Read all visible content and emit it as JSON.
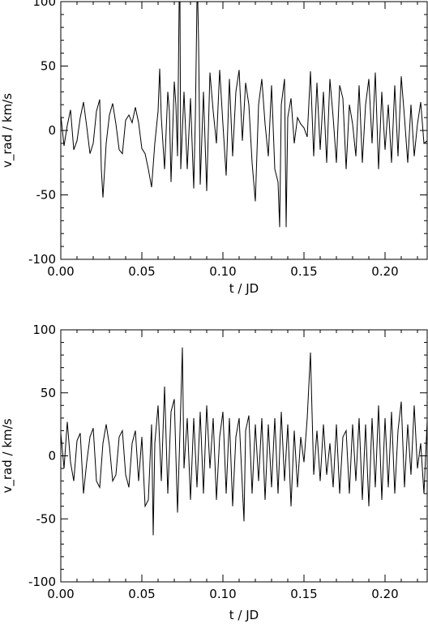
{
  "chart_data": [
    {
      "type": "line",
      "xlabel": "t / JD",
      "ylabel": "v_rad / km/s",
      "xlim": [
        0.0,
        0.226
      ],
      "ylim": [
        -100,
        100
      ],
      "xticks": [
        0.0,
        0.05,
        0.1,
        0.15,
        0.2
      ],
      "xtick_labels": [
        "0.00",
        "0.05",
        "0.10",
        "0.15",
        "0.20"
      ],
      "yticks": [
        -100,
        -50,
        0,
        50,
        100
      ],
      "ytick_labels": [
        "-100",
        "-50",
        "0",
        "50",
        "100"
      ],
      "series": [
        {
          "points": [
            [
              0.0,
              12
            ],
            [
              0.002,
              -12
            ],
            [
              0.004,
              4
            ],
            [
              0.006,
              16
            ],
            [
              0.008,
              -15
            ],
            [
              0.01,
              -8
            ],
            [
              0.012,
              10
            ],
            [
              0.014,
              22
            ],
            [
              0.016,
              3
            ],
            [
              0.018,
              -18
            ],
            [
              0.02,
              -10
            ],
            [
              0.022,
              15
            ],
            [
              0.024,
              24
            ],
            [
              0.025,
              -30
            ],
            [
              0.026,
              -52
            ],
            [
              0.028,
              -10
            ],
            [
              0.03,
              12
            ],
            [
              0.032,
              21
            ],
            [
              0.034,
              5
            ],
            [
              0.036,
              -15
            ],
            [
              0.038,
              -18
            ],
            [
              0.04,
              8
            ],
            [
              0.042,
              12
            ],
            [
              0.044,
              6
            ],
            [
              0.046,
              18
            ],
            [
              0.048,
              6
            ],
            [
              0.05,
              -14
            ],
            [
              0.052,
              -18
            ],
            [
              0.054,
              -30
            ],
            [
              0.056,
              -44
            ],
            [
              0.058,
              -10
            ],
            [
              0.06,
              15
            ],
            [
              0.061,
              48
            ],
            [
              0.062,
              10
            ],
            [
              0.064,
              -30
            ],
            [
              0.066,
              30
            ],
            [
              0.067,
              15
            ],
            [
              0.068,
              -40
            ],
            [
              0.07,
              38
            ],
            [
              0.071,
              20
            ],
            [
              0.072,
              -20
            ],
            [
              0.073,
              100
            ],
            [
              0.0735,
              100
            ],
            [
              0.074,
              -30
            ],
            [
              0.076,
              30
            ],
            [
              0.078,
              -30
            ],
            [
              0.08,
              25
            ],
            [
              0.082,
              -45
            ],
            [
              0.083,
              10
            ],
            [
              0.084,
              100
            ],
            [
              0.0845,
              100
            ],
            [
              0.085,
              68
            ],
            [
              0.086,
              -42
            ],
            [
              0.088,
              30
            ],
            [
              0.09,
              -47
            ],
            [
              0.092,
              45
            ],
            [
              0.094,
              15
            ],
            [
              0.096,
              -10
            ],
            [
              0.098,
              47
            ],
            [
              0.1,
              5
            ],
            [
              0.102,
              -35
            ],
            [
              0.104,
              40
            ],
            [
              0.106,
              -20
            ],
            [
              0.108,
              30
            ],
            [
              0.11,
              47
            ],
            [
              0.112,
              -8
            ],
            [
              0.114,
              37
            ],
            [
              0.116,
              20
            ],
            [
              0.118,
              -25
            ],
            [
              0.12,
              -55
            ],
            [
              0.122,
              20
            ],
            [
              0.124,
              40
            ],
            [
              0.126,
              5
            ],
            [
              0.128,
              -20
            ],
            [
              0.13,
              35
            ],
            [
              0.132,
              -30
            ],
            [
              0.134,
              -40
            ],
            [
              0.135,
              -75
            ],
            [
              0.136,
              20
            ],
            [
              0.138,
              40
            ],
            [
              0.139,
              -75
            ],
            [
              0.14,
              10
            ],
            [
              0.142,
              25
            ],
            [
              0.144,
              -10
            ],
            [
              0.146,
              10
            ],
            [
              0.148,
              5
            ],
            [
              0.15,
              2
            ],
            [
              0.152,
              -5
            ],
            [
              0.154,
              46
            ],
            [
              0.156,
              -20
            ],
            [
              0.158,
              37
            ],
            [
              0.16,
              -15
            ],
            [
              0.162,
              30
            ],
            [
              0.164,
              -25
            ],
            [
              0.166,
              40
            ],
            [
              0.168,
              10
            ],
            [
              0.17,
              -25
            ],
            [
              0.172,
              35
            ],
            [
              0.174,
              25
            ],
            [
              0.176,
              -30
            ],
            [
              0.178,
              20
            ],
            [
              0.18,
              5
            ],
            [
              0.182,
              -20
            ],
            [
              0.184,
              35
            ],
            [
              0.186,
              -25
            ],
            [
              0.188,
              20
            ],
            [
              0.19,
              40
            ],
            [
              0.192,
              -10
            ],
            [
              0.194,
              45
            ],
            [
              0.196,
              -30
            ],
            [
              0.198,
              30
            ],
            [
              0.2,
              -15
            ],
            [
              0.202,
              20
            ],
            [
              0.204,
              -25
            ],
            [
              0.206,
              35
            ],
            [
              0.208,
              -20
            ],
            [
              0.21,
              42
            ],
            [
              0.212,
              10
            ],
            [
              0.214,
              -25
            ],
            [
              0.216,
              20
            ],
            [
              0.218,
              -20
            ],
            [
              0.22,
              5
            ],
            [
              0.222,
              22
            ],
            [
              0.224,
              -10
            ],
            [
              0.226,
              -8
            ]
          ]
        }
      ]
    },
    {
      "type": "line",
      "xlabel": "t / JD",
      "ylabel": "v_rad / km/s",
      "xlim": [
        0.0,
        0.226
      ],
      "ylim": [
        -100,
        100
      ],
      "xticks": [
        0.0,
        0.05,
        0.1,
        0.15,
        0.2
      ],
      "xtick_labels": [
        "0.00",
        "0.05",
        "0.10",
        "0.15",
        "0.20"
      ],
      "yticks": [
        -100,
        -50,
        0,
        50,
        100
      ],
      "ytick_labels": [
        "-100",
        "-50",
        "0",
        "50",
        "100"
      ],
      "series": [
        {
          "points": [
            [
              0.0,
              18
            ],
            [
              0.002,
              -10
            ],
            [
              0.004,
              27
            ],
            [
              0.006,
              -5
            ],
            [
              0.008,
              -20
            ],
            [
              0.01,
              12
            ],
            [
              0.012,
              18
            ],
            [
              0.014,
              -30
            ],
            [
              0.016,
              -5
            ],
            [
              0.018,
              15
            ],
            [
              0.02,
              22
            ],
            [
              0.022,
              -20
            ],
            [
              0.024,
              -25
            ],
            [
              0.026,
              10
            ],
            [
              0.028,
              25
            ],
            [
              0.03,
              8
            ],
            [
              0.032,
              -20
            ],
            [
              0.034,
              -15
            ],
            [
              0.036,
              15
            ],
            [
              0.038,
              20
            ],
            [
              0.04,
              -15
            ],
            [
              0.042,
              -25
            ],
            [
              0.044,
              10
            ],
            [
              0.046,
              20
            ],
            [
              0.048,
              -20
            ],
            [
              0.05,
              15
            ],
            [
              0.052,
              -40
            ],
            [
              0.054,
              -35
            ],
            [
              0.056,
              25
            ],
            [
              0.057,
              -63
            ],
            [
              0.058,
              10
            ],
            [
              0.06,
              40
            ],
            [
              0.062,
              -20
            ],
            [
              0.064,
              55
            ],
            [
              0.066,
              -30
            ],
            [
              0.068,
              35
            ],
            [
              0.07,
              45
            ],
            [
              0.072,
              -45
            ],
            [
              0.074,
              40
            ],
            [
              0.075,
              86
            ],
            [
              0.076,
              -10
            ],
            [
              0.078,
              30
            ],
            [
              0.08,
              -35
            ],
            [
              0.082,
              30
            ],
            [
              0.084,
              -25
            ],
            [
              0.086,
              35
            ],
            [
              0.088,
              -30
            ],
            [
              0.09,
              40
            ],
            [
              0.092,
              -10
            ],
            [
              0.094,
              30
            ],
            [
              0.096,
              -35
            ],
            [
              0.098,
              15
            ],
            [
              0.1,
              35
            ],
            [
              0.102,
              -30
            ],
            [
              0.104,
              30
            ],
            [
              0.106,
              -40
            ],
            [
              0.108,
              15
            ],
            [
              0.11,
              30
            ],
            [
              0.112,
              -25
            ],
            [
              0.113,
              -52
            ],
            [
              0.114,
              20
            ],
            [
              0.116,
              32
            ],
            [
              0.118,
              -30
            ],
            [
              0.12,
              25
            ],
            [
              0.122,
              -20
            ],
            [
              0.124,
              30
            ],
            [
              0.126,
              -35
            ],
            [
              0.128,
              25
            ],
            [
              0.13,
              -25
            ],
            [
              0.132,
              30
            ],
            [
              0.134,
              -30
            ],
            [
              0.136,
              35
            ],
            [
              0.138,
              -20
            ],
            [
              0.14,
              25
            ],
            [
              0.142,
              -40
            ],
            [
              0.144,
              20
            ],
            [
              0.146,
              -25
            ],
            [
              0.148,
              15
            ],
            [
              0.15,
              -5
            ],
            [
              0.152,
              30
            ],
            [
              0.154,
              82
            ],
            [
              0.156,
              -15
            ],
            [
              0.158,
              20
            ],
            [
              0.16,
              -20
            ],
            [
              0.162,
              25
            ],
            [
              0.164,
              -15
            ],
            [
              0.166,
              10
            ],
            [
              0.168,
              -25
            ],
            [
              0.17,
              25
            ],
            [
              0.172,
              -30
            ],
            [
              0.174,
              15
            ],
            [
              0.176,
              20
            ],
            [
              0.178,
              -30
            ],
            [
              0.18,
              25
            ],
            [
              0.182,
              -20
            ],
            [
              0.184,
              30
            ],
            [
              0.186,
              -35
            ],
            [
              0.188,
              25
            ],
            [
              0.19,
              -40
            ],
            [
              0.192,
              30
            ],
            [
              0.194,
              -25
            ],
            [
              0.196,
              40
            ],
            [
              0.198,
              -35
            ],
            [
              0.2,
              30
            ],
            [
              0.202,
              -25
            ],
            [
              0.204,
              35
            ],
            [
              0.206,
              -30
            ],
            [
              0.208,
              20
            ],
            [
              0.21,
              43
            ],
            [
              0.212,
              -25
            ],
            [
              0.214,
              25
            ],
            [
              0.216,
              -15
            ],
            [
              0.218,
              40
            ],
            [
              0.22,
              -10
            ],
            [
              0.222,
              10
            ],
            [
              0.224,
              -30
            ],
            [
              0.226,
              28
            ]
          ]
        }
      ]
    }
  ]
}
